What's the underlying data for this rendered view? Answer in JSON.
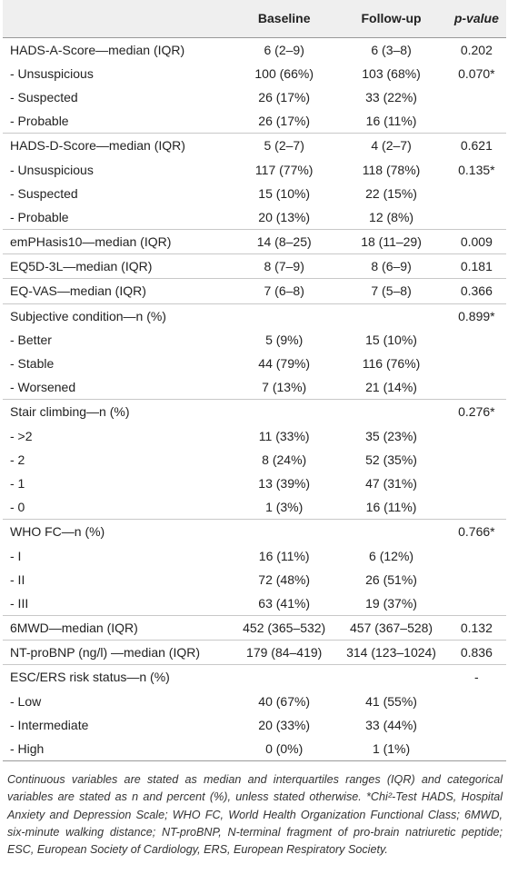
{
  "header": {
    "col0": "",
    "baseline": "Baseline",
    "followup": "Follow-up",
    "pvalue": "p-value"
  },
  "rows": [
    {
      "label": "HADS-A-Score—median (IQR)",
      "b": "6 (2–9)",
      "f": "6 (3–8)",
      "p": "0.202",
      "group": true
    },
    {
      "label": "- Unsuspicious",
      "b": "100 (66%)",
      "f": "103 (68%)",
      "p": "0.070*"
    },
    {
      "label": "- Suspected",
      "b": "26 (17%)",
      "f": "33 (22%)",
      "p": ""
    },
    {
      "label": "- Probable",
      "b": "26 (17%)",
      "f": "16 (11%)",
      "p": ""
    },
    {
      "label": "HADS-D-Score—median (IQR)",
      "b": "5 (2–7)",
      "f": "4 (2–7)",
      "p": "0.621",
      "group": true
    },
    {
      "label": "- Unsuspicious",
      "b": "117 (77%)",
      "f": "118 (78%)",
      "p": "0.135*"
    },
    {
      "label": "- Suspected",
      "b": "15 (10%)",
      "f": "22 (15%)",
      "p": ""
    },
    {
      "label": "- Probable",
      "b": "20 (13%)",
      "f": "12 (8%)",
      "p": ""
    },
    {
      "label": "emPHasis10—median (IQR)",
      "b": "14 (8–25)",
      "f": "18 (11–29)",
      "p": "0.009",
      "group": true
    },
    {
      "label": "EQ5D-3L—median (IQR)",
      "b": "8 (7–9)",
      "f": "8 (6–9)",
      "p": "0.181",
      "group": true
    },
    {
      "label": "EQ-VAS—median (IQR)",
      "b": "7 (6–8)",
      "f": "7 (5–8)",
      "p": "0.366",
      "group": true
    },
    {
      "label": "Subjective condition—n (%)",
      "b": "",
      "f": "",
      "p": "0.899*",
      "group": true
    },
    {
      "label": "- Better",
      "b": "5 (9%)",
      "f": "15 (10%)",
      "p": ""
    },
    {
      "label": "- Stable",
      "b": "44 (79%)",
      "f": "116 (76%)",
      "p": ""
    },
    {
      "label": "- Worsened",
      "b": "7 (13%)",
      "f": "21 (14%)",
      "p": ""
    },
    {
      "label": "Stair climbing—n (%)",
      "b": "",
      "f": "",
      "p": "0.276*",
      "group": true
    },
    {
      "label": "- >2",
      "b": "11 (33%)",
      "f": "35 (23%)",
      "p": ""
    },
    {
      "label": "- 2",
      "b": "8 (24%)",
      "f": "52 (35%)",
      "p": ""
    },
    {
      "label": "- 1",
      "b": "13 (39%)",
      "f": "47 (31%)",
      "p": ""
    },
    {
      "label": "- 0",
      "b": "1 (3%)",
      "f": "16 (11%)",
      "p": ""
    },
    {
      "label": "WHO FC—n (%)",
      "b": "",
      "f": "",
      "p": "0.766*",
      "group": true
    },
    {
      "label": "- I",
      "b": "16 (11%)",
      "f": "6 (12%)",
      "p": ""
    },
    {
      "label": "- II",
      "b": "72 (48%)",
      "f": "26 (51%)",
      "p": ""
    },
    {
      "label": "- III",
      "b": "63 (41%)",
      "f": "19 (37%)",
      "p": ""
    },
    {
      "label": "6MWD—median (IQR)",
      "b": "452 (365–532)",
      "f": "457 (367–528)",
      "p": "0.132",
      "group": true
    },
    {
      "label": "NT-proBNP (ng/l) —median (IQR)",
      "b": "179 (84–419)",
      "f": "314 (123–1024)",
      "p": "0.836",
      "group": true
    },
    {
      "label": "ESC/ERS risk status—n (%)",
      "b": "",
      "f": "",
      "p": "-",
      "group": true
    },
    {
      "label": "- Low",
      "b": "40 (67%)",
      "f": "41 (55%)",
      "p": ""
    },
    {
      "label": "- Intermediate",
      "b": "20 (33%)",
      "f": "33 (44%)",
      "p": ""
    },
    {
      "label": "- High",
      "b": "0 (0%)",
      "f": "1 (1%)",
      "p": ""
    }
  ],
  "footnote": "Continuous variables are stated as median and interquartiles ranges (IQR) and categorical variables are stated as n and percent (%), unless stated otherwise. *Chi²-Test HADS, Hospital Anxiety and Depression Scale; WHO FC, World Health Organization Functional Class; 6MWD, six-minute walking distance; NT-proBNP, N-terminal fragment of pro-brain natriuretic peptide; ESC, European Society of Cardiology, ERS, European Respiratory Society."
}
